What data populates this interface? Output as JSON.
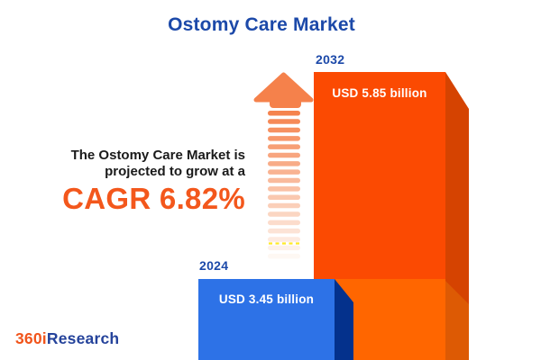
{
  "page": {
    "background": "#FFFFFF"
  },
  "header": {
    "title": "Ostomy Care Market",
    "title_color": "#1C49A9"
  },
  "promo": {
    "line1": "The Ostomy Care Market is",
    "line2": "projected to grow at a",
    "cagr_text": "CAGR 6.82%",
    "text_color": "#1A1A1A",
    "cagr_color": "#F3571C"
  },
  "logo": {
    "prefix": "360i",
    "suffix": "Research",
    "prefix_color": "#F1551C",
    "suffix_color": "#25439B"
  },
  "growth_arrow": {
    "icon": "growth-arrow-icon",
    "stripe_count": 18,
    "head_color": "#F5814B",
    "stripe_color_start": "#F5834E",
    "stripe_color_end": "#FEF8F3",
    "dash_color": "#FFE602"
  },
  "chart_data": {
    "type": "bar",
    "title": "Ostomy Care Market",
    "categories": [
      "2024",
      "2032"
    ],
    "values": [
      3.45,
      5.85
    ],
    "unit": "USD billion",
    "value_labels": [
      "USD 3.45 billion",
      "USD 5.85 billion"
    ],
    "cagr_percent": 6.82,
    "legend": "none",
    "grid": false,
    "style": "3d-bars-cropped-at-bottom",
    "bars": {
      "b2024": {
        "front": "#2D72E7",
        "side": "#04318C"
      },
      "b2032": {
        "front": "#FB4A02",
        "side": "#D54301",
        "overlay_front": "#FF6600",
        "overlay_side": "#DD5A04"
      }
    }
  }
}
